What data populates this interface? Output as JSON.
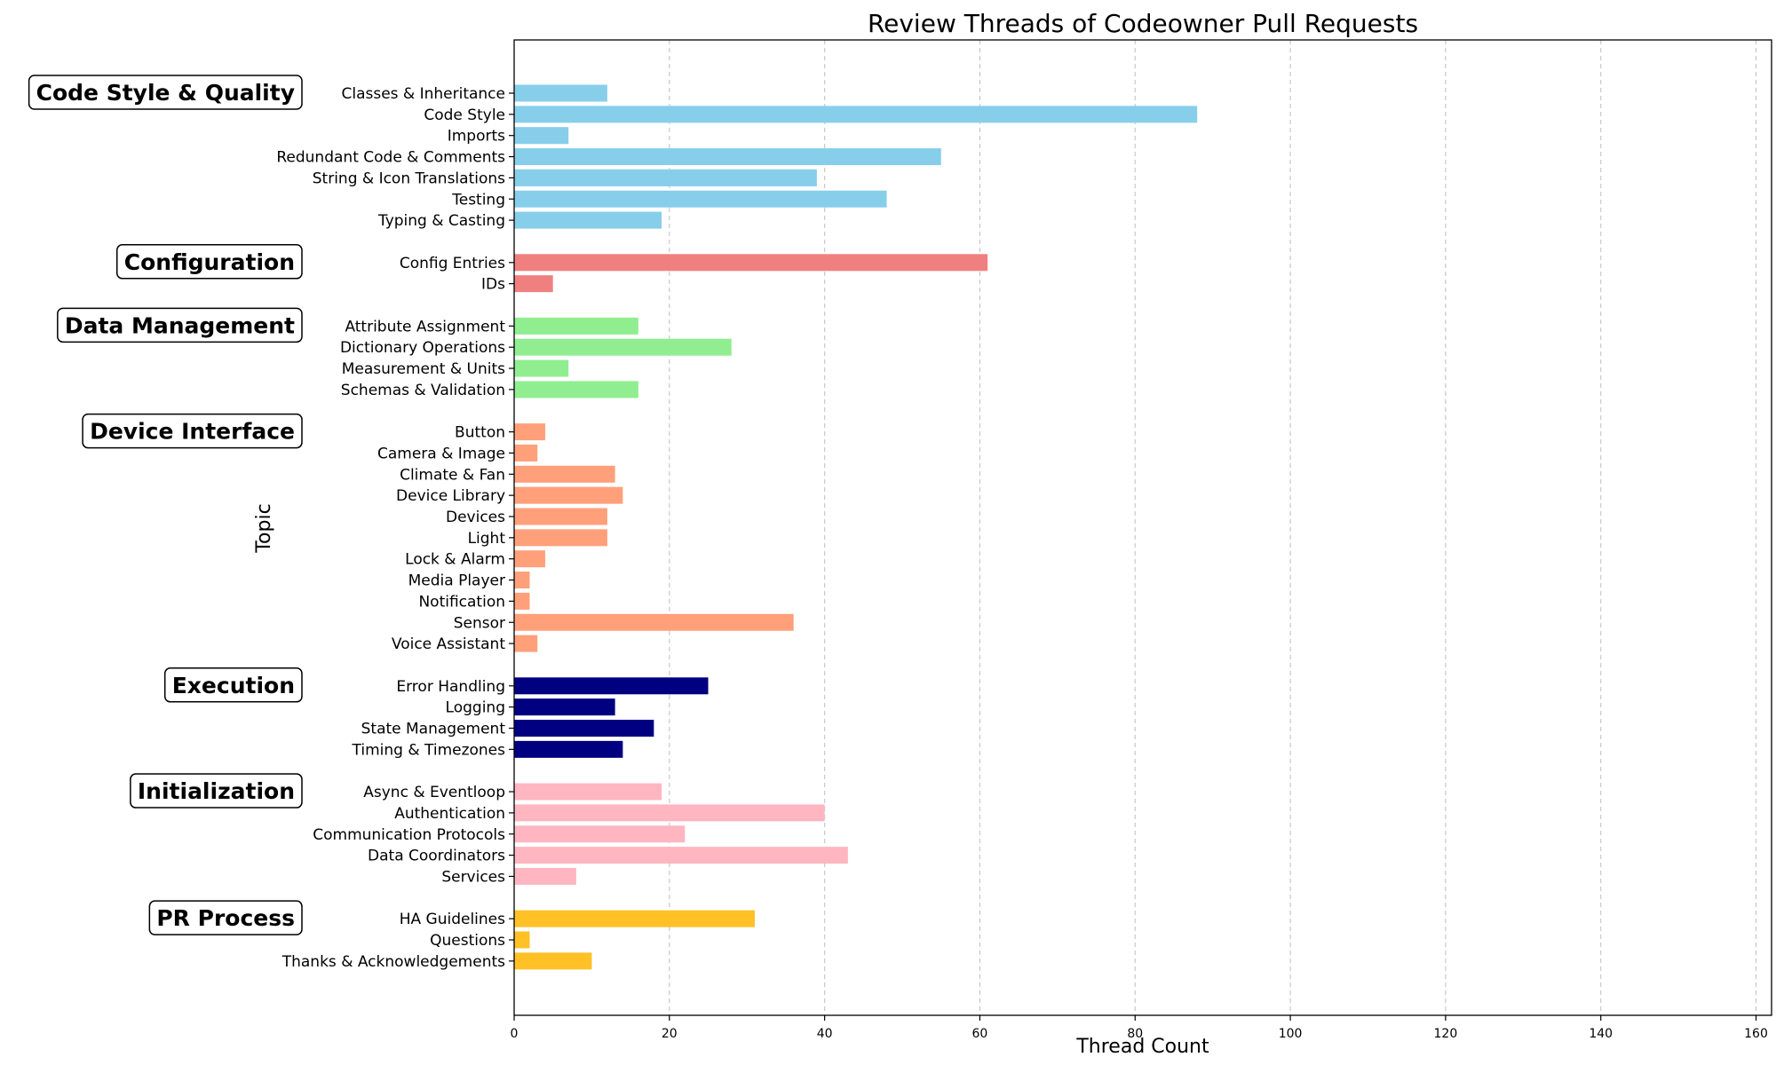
{
  "chart_data": {
    "type": "bar",
    "orientation": "horizontal",
    "title": "Review Threads of Codeowner Pull Requests",
    "xlabel": "Thread Count",
    "ylabel": "Topic",
    "xlim": [
      0,
      162
    ],
    "xticks": [
      0,
      20,
      40,
      60,
      80,
      100,
      120,
      140,
      160
    ],
    "grid": "x-dashed",
    "groups": [
      {
        "name": "Code Style & Quality",
        "color": "#87CEEB",
        "items": [
          {
            "label": "Classes & Inheritance",
            "value": 12
          },
          {
            "label": "Code Style",
            "value": 88
          },
          {
            "label": "Imports",
            "value": 7
          },
          {
            "label": "Redundant Code & Comments",
            "value": 55
          },
          {
            "label": "String & Icon Translations",
            "value": 39
          },
          {
            "label": "Testing",
            "value": 48
          },
          {
            "label": "Typing & Casting",
            "value": 19
          }
        ]
      },
      {
        "name": "Configuration",
        "color": "#F08080",
        "items": [
          {
            "label": "Config Entries",
            "value": 61
          },
          {
            "label": "IDs",
            "value": 5
          }
        ]
      },
      {
        "name": "Data Management",
        "color": "#90EE90",
        "items": [
          {
            "label": "Attribute Assignment",
            "value": 16
          },
          {
            "label": "Dictionary Operations",
            "value": 28
          },
          {
            "label": "Measurement & Units",
            "value": 7
          },
          {
            "label": "Schemas & Validation",
            "value": 16
          }
        ]
      },
      {
        "name": "Device Interface",
        "color": "#FFA07A",
        "items": [
          {
            "label": "Button",
            "value": 4
          },
          {
            "label": "Camera & Image",
            "value": 3
          },
          {
            "label": "Climate & Fan",
            "value": 13
          },
          {
            "label": "Device Library",
            "value": 14
          },
          {
            "label": "Devices",
            "value": 12
          },
          {
            "label": "Light",
            "value": 12
          },
          {
            "label": "Lock & Alarm",
            "value": 4
          },
          {
            "label": "Media Player",
            "value": 2
          },
          {
            "label": "Notification",
            "value": 2
          },
          {
            "label": "Sensor",
            "value": 36
          },
          {
            "label": "Voice Assistant",
            "value": 3
          }
        ]
      },
      {
        "name": "Execution",
        "color": "#000080",
        "items": [
          {
            "label": "Error Handling",
            "value": 25
          },
          {
            "label": "Logging",
            "value": 13
          },
          {
            "label": "State Management",
            "value": 18
          },
          {
            "label": "Timing & Timezones",
            "value": 14
          }
        ]
      },
      {
        "name": "Initialization",
        "color": "#FFB6C1",
        "items": [
          {
            "label": "Async & Eventloop",
            "value": 19
          },
          {
            "label": "Authentication",
            "value": 40
          },
          {
            "label": "Communication Protocols",
            "value": 22
          },
          {
            "label": "Data Coordinators",
            "value": 43
          },
          {
            "label": "Services",
            "value": 8
          }
        ]
      },
      {
        "name": "PR Process",
        "color": "#FFC125",
        "items": [
          {
            "label": "HA Guidelines",
            "value": 31
          },
          {
            "label": "Questions",
            "value": 2
          },
          {
            "label": "Thanks & Acknowledgements",
            "value": 10
          }
        ]
      }
    ]
  }
}
